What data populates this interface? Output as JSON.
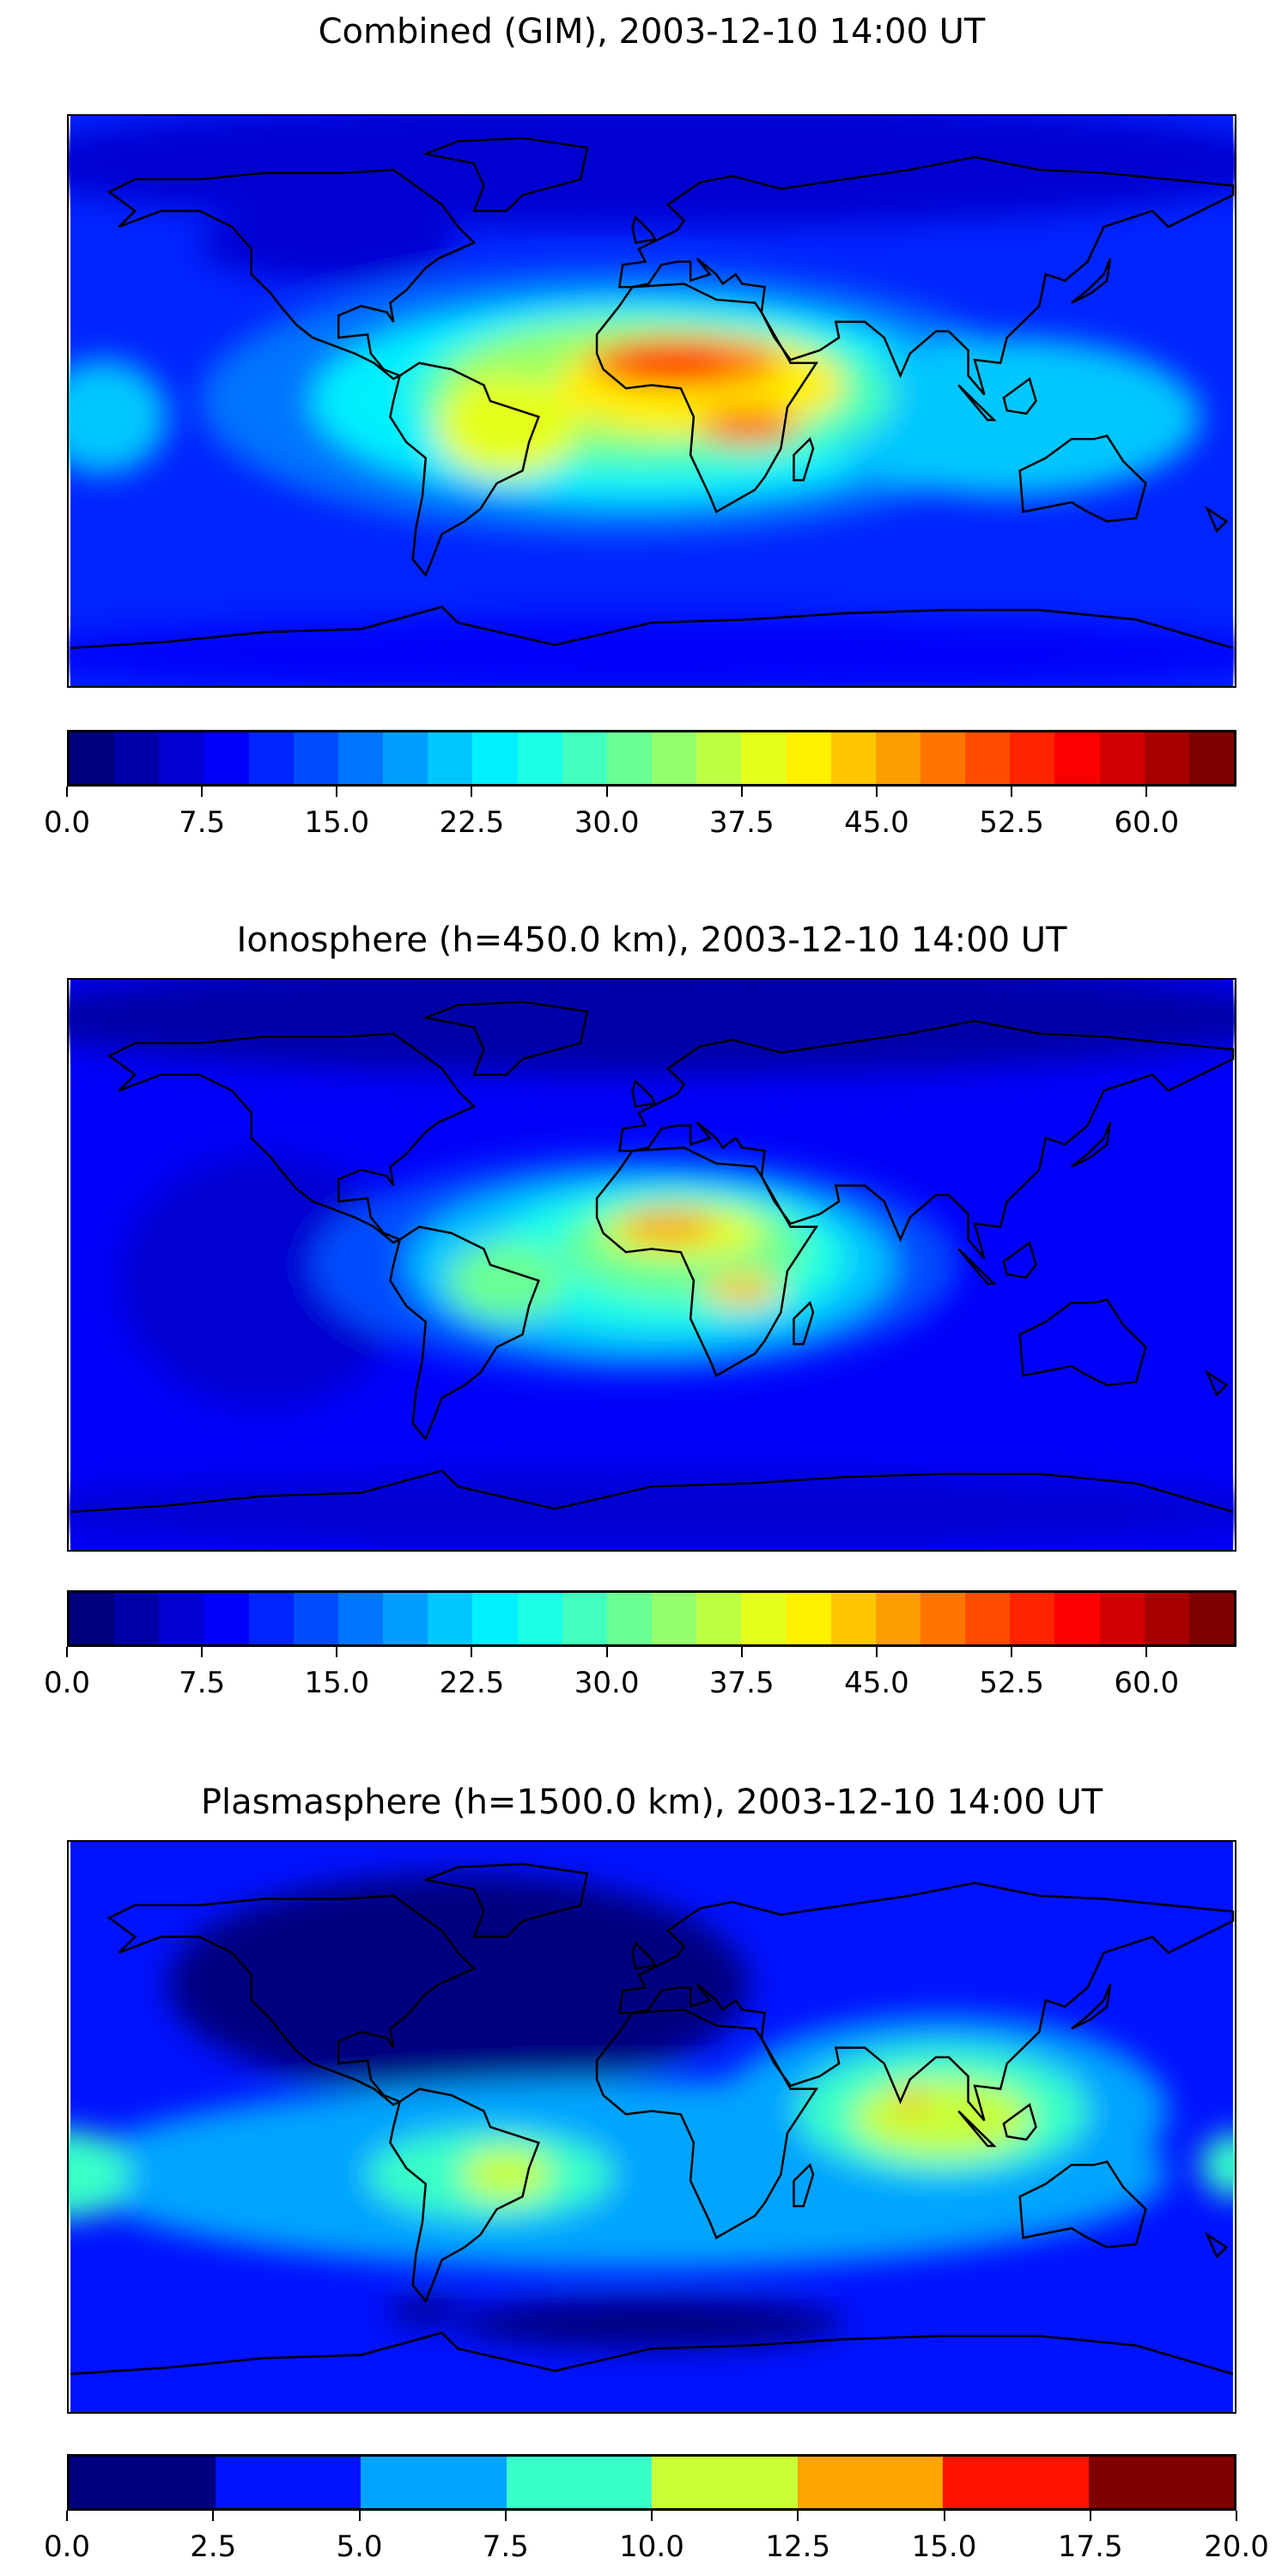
{
  "chart_data": [
    {
      "type": "heatmap",
      "title": "Combined (GIM), 2003-12-10 14:00 UT",
      "projection": "equirectangular",
      "xlim": [
        -180,
        180
      ],
      "ylim": [
        -90,
        90
      ],
      "colormap": "jet",
      "levels": {
        "min": 0,
        "max": 65,
        "step": 2.5
      },
      "colorbar_ticks": [
        "0.0",
        "7.5",
        "15.0",
        "22.5",
        "30.0",
        "37.5",
        "45.0",
        "52.5",
        "60.0"
      ],
      "base_value": 12,
      "field_features": [
        {
          "lon": 0,
          "lat": 75,
          "rlon": 200,
          "rlat": 20,
          "value": 6
        },
        {
          "lon": -100,
          "lat": 50,
          "rlon": 40,
          "rlat": 12,
          "value": 5
        },
        {
          "lon": 0,
          "lat": -80,
          "rlon": 200,
          "rlat": 12,
          "value": 8
        },
        {
          "lon": -10,
          "lat": 0,
          "rlon": 130,
          "rlat": 42,
          "value": 17
        },
        {
          "lon": -5,
          "lat": 0,
          "rlon": 100,
          "rlat": 32,
          "value": 23
        },
        {
          "lon": 110,
          "lat": -5,
          "rlon": 60,
          "rlat": 25,
          "value": 20
        },
        {
          "lon": -170,
          "lat": -5,
          "rlon": 20,
          "rlat": 18,
          "value": 20
        },
        {
          "lon": 0,
          "lat": 2,
          "rlon": 75,
          "rlat": 25,
          "value": 28
        },
        {
          "lon": -10,
          "lat": 5,
          "rlon": 55,
          "rlat": 20,
          "value": 33
        },
        {
          "lon": -45,
          "lat": -8,
          "rlon": 22,
          "rlat": 16,
          "value": 38
        },
        {
          "lon": 15,
          "lat": 5,
          "rlon": 45,
          "rlat": 16,
          "value": 41
        },
        {
          "lon": 10,
          "lat": 12,
          "rlon": 30,
          "rlat": 8,
          "value": 48
        },
        {
          "lon": 5,
          "lat": 12,
          "rlon": 18,
          "rlat": 5,
          "value": 54
        },
        {
          "lon": 30,
          "lat": -8,
          "rlon": 15,
          "rlat": 6,
          "value": 48
        }
      ]
    },
    {
      "type": "heatmap",
      "title": "Ionosphere  (h=450.0 km), 2003-12-10 14:00 UT",
      "projection": "equirectangular",
      "xlim": [
        -180,
        180
      ],
      "ylim": [
        -90,
        90
      ],
      "colormap": "jet",
      "levels": {
        "min": 0,
        "max": 65,
        "step": 2.5
      },
      "colorbar_ticks": [
        "0.0",
        "7.5",
        "15.0",
        "22.5",
        "30.0",
        "37.5",
        "45.0",
        "52.5",
        "60.0"
      ],
      "base_value": 9,
      "field_features": [
        {
          "lon": 0,
          "lat": 78,
          "rlon": 200,
          "rlat": 18,
          "value": 4
        },
        {
          "lon": -120,
          "lat": -5,
          "rlon": 45,
          "rlat": 40,
          "value": 6
        },
        {
          "lon": 0,
          "lat": -78,
          "rlon": 200,
          "rlat": 12,
          "value": 6
        },
        {
          "lon": -5,
          "lat": 0,
          "rlon": 100,
          "rlat": 35,
          "value": 14
        },
        {
          "lon": 0,
          "lat": 0,
          "rlon": 75,
          "rlat": 28,
          "value": 20
        },
        {
          "lon": 5,
          "lat": 2,
          "rlon": 55,
          "rlat": 22,
          "value": 26
        },
        {
          "lon": 10,
          "lat": 5,
          "rlon": 38,
          "rlat": 16,
          "value": 31
        },
        {
          "lon": -45,
          "lat": -5,
          "rlon": 18,
          "rlat": 12,
          "value": 30
        },
        {
          "lon": 10,
          "lat": 10,
          "rlon": 25,
          "rlat": 8,
          "value": 38
        },
        {
          "lon": 5,
          "lat": 12,
          "rlon": 15,
          "rlat": 5,
          "value": 45
        },
        {
          "lon": 28,
          "lat": -8,
          "rlon": 12,
          "rlat": 5,
          "value": 43
        }
      ]
    },
    {
      "type": "heatmap",
      "title": "Plasmasphere (h=1500.0 km), 2003-12-10 14:00 UT",
      "projection": "equirectangular",
      "xlim": [
        -180,
        180
      ],
      "ylim": [
        -90,
        90
      ],
      "colormap": "jet",
      "levels": {
        "min": 0,
        "max": 20,
        "step": 2.5
      },
      "colorbar_ticks": [
        "0.0",
        "2.5",
        "5.0",
        "7.5",
        "10.0",
        "12.5",
        "15.0",
        "17.5",
        "20.0"
      ],
      "base_value": 3.75,
      "field_features": [
        {
          "lon": -60,
          "lat": 45,
          "rlon": 90,
          "rlat": 35,
          "value": 1.25
        },
        {
          "lon": 0,
          "lat": -62,
          "rlon": 60,
          "rlat": 8,
          "value": 1.25
        },
        {
          "lon": -10,
          "lat": -15,
          "rlon": 170,
          "rlat": 30,
          "value": 6.25
        },
        {
          "lon": 90,
          "lat": 5,
          "rlon": 70,
          "rlat": 30,
          "value": 6.25
        },
        {
          "lon": 90,
          "lat": 5,
          "rlon": 45,
          "rlat": 20,
          "value": 8.75
        },
        {
          "lon": 90,
          "lat": 3,
          "rlon": 28,
          "rlat": 12,
          "value": 11.25
        },
        {
          "lon": 80,
          "lat": 8,
          "rlon": 4,
          "rlat": 4,
          "value": 13.75
        },
        {
          "lon": -50,
          "lat": -15,
          "rlon": 38,
          "rlat": 14,
          "value": 8.75
        },
        {
          "lon": -45,
          "lat": -15,
          "rlon": 14,
          "rlat": 8,
          "value": 11.25
        },
        {
          "lon": -180,
          "lat": -15,
          "rlon": 18,
          "rlat": 14,
          "value": 8.75
        },
        {
          "lon": 180,
          "lat": -12,
          "rlon": 10,
          "rlat": 10,
          "value": 8.75
        },
        {
          "lon": -70,
          "lat": -58,
          "rlon": 12,
          "rlat": 4,
          "value": 1.25
        }
      ]
    }
  ]
}
